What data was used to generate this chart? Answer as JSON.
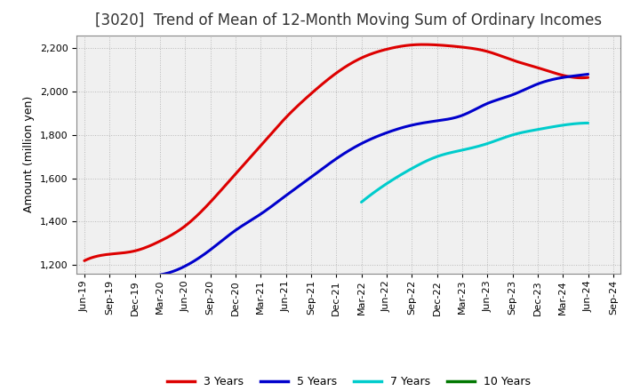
{
  "title": "[3020]  Trend of Mean of 12-Month Moving Sum of Ordinary Incomes",
  "ylabel": "Amount (million yen)",
  "background_color": "#ffffff",
  "plot_bg_color": "#f0f0f0",
  "grid_color": "#aaaaaa",
  "ylim": [
    1160,
    2260
  ],
  "yticks": [
    1200,
    1400,
    1600,
    1800,
    2000,
    2200
  ],
  "x_labels": [
    "Jun-19",
    "Sep-19",
    "Dec-19",
    "Mar-20",
    "Jun-20",
    "Sep-20",
    "Dec-20",
    "Mar-21",
    "Jun-21",
    "Sep-21",
    "Dec-21",
    "Mar-22",
    "Jun-22",
    "Sep-22",
    "Dec-22",
    "Mar-23",
    "Jun-23",
    "Sep-23",
    "Dec-23",
    "Mar-24",
    "Jun-24",
    "Sep-24"
  ],
  "series_order": [
    "3 Years",
    "5 Years",
    "7 Years",
    "10 Years"
  ],
  "series": {
    "3 Years": {
      "color": "#dd0000",
      "data_x": [
        0,
        1,
        2,
        3,
        4,
        5,
        6,
        7,
        8,
        9,
        10,
        11,
        12,
        13,
        14,
        15,
        16,
        17,
        18,
        19,
        20
      ],
      "data_y": [
        1220,
        1250,
        1265,
        1310,
        1380,
        1490,
        1620,
        1750,
        1880,
        1990,
        2085,
        2155,
        2195,
        2215,
        2215,
        2205,
        2185,
        2145,
        2110,
        2075,
        2065
      ]
    },
    "5 Years": {
      "color": "#0000cc",
      "data_x": [
        3,
        4,
        5,
        6,
        7,
        8,
        9,
        10,
        11,
        12,
        13,
        14,
        15,
        16,
        17,
        18,
        19,
        20
      ],
      "data_y": [
        1155,
        1195,
        1270,
        1360,
        1435,
        1520,
        1605,
        1690,
        1760,
        1810,
        1845,
        1865,
        1890,
        1945,
        1985,
        2035,
        2065,
        2080
      ]
    },
    "7 Years": {
      "color": "#00cccc",
      "data_x": [
        11,
        12,
        13,
        14,
        15,
        16,
        17,
        18,
        19,
        20
      ],
      "data_y": [
        1490,
        1575,
        1645,
        1700,
        1730,
        1760,
        1800,
        1825,
        1845,
        1855
      ]
    },
    "10 Years": {
      "color": "#007700",
      "data_x": [],
      "data_y": []
    }
  },
  "legend_entries": [
    "3 Years",
    "5 Years",
    "7 Years",
    "10 Years"
  ],
  "legend_colors": [
    "#dd0000",
    "#0000cc",
    "#00cccc",
    "#007700"
  ],
  "title_color": "#333333",
  "title_fontsize": 12,
  "axis_label_fontsize": 9,
  "tick_fontsize": 8,
  "linewidth": 2.2
}
